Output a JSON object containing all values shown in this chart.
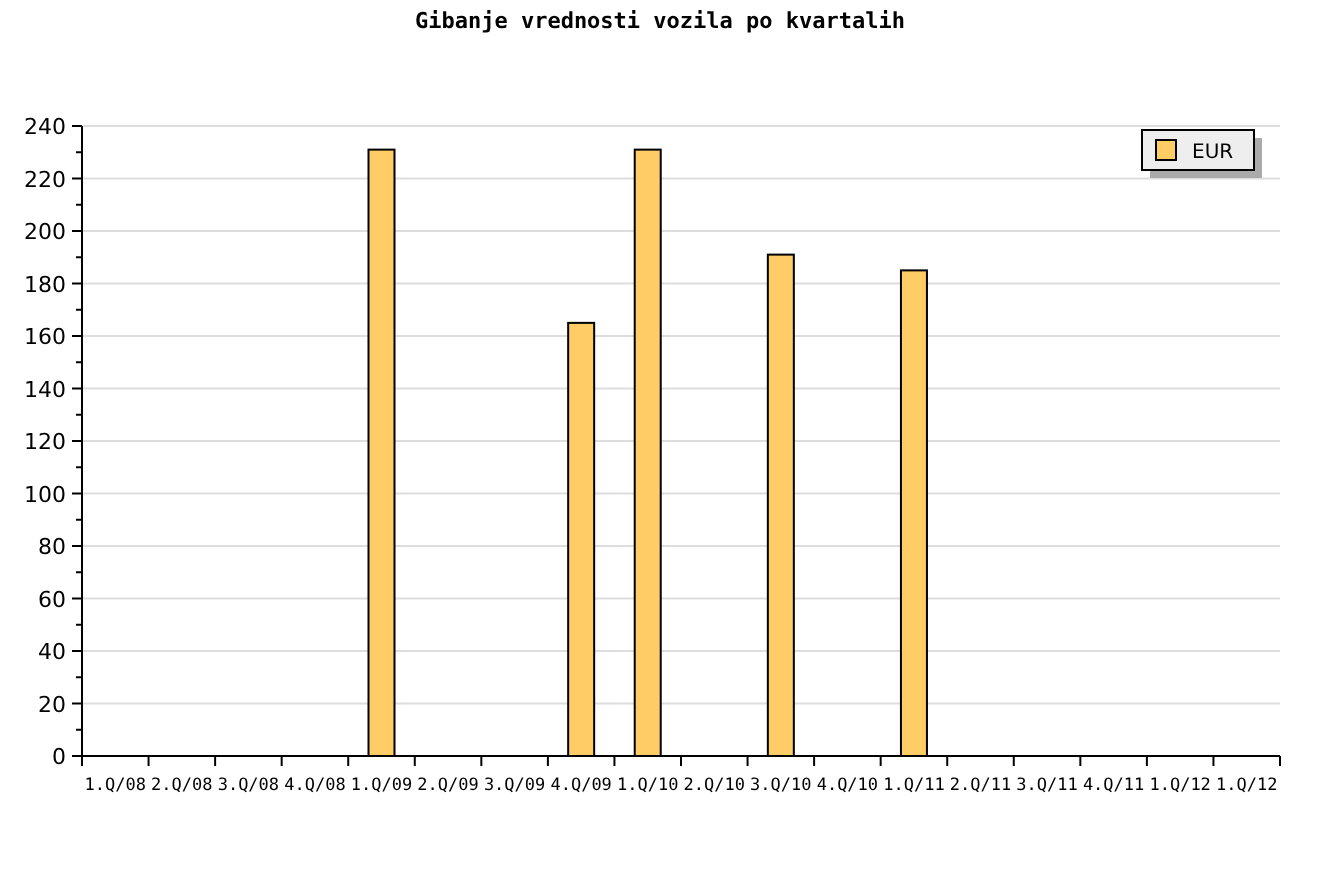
{
  "chart_data": {
    "type": "bar",
    "title": "Gibanje vrednosti vozila po kvartalih",
    "categories": [
      "1.Q/08",
      "2.Q/08",
      "3.Q/08",
      "4.Q/08",
      "1.Q/09",
      "2.Q/09",
      "3.Q/09",
      "4.Q/09",
      "1.Q/10",
      "2.Q/10",
      "3.Q/10",
      "4.Q/10",
      "1.Q/11",
      "2.Q/11",
      "3.Q/11",
      "4.Q/11",
      "1.Q/12",
      "1.Q/12"
    ],
    "series": [
      {
        "name": "EUR",
        "color": "#ffcc66",
        "values": [
          null,
          null,
          null,
          null,
          231,
          null,
          null,
          165,
          231,
          null,
          191,
          null,
          185,
          null,
          null,
          null,
          null,
          null
        ]
      }
    ],
    "ylim": [
      0,
      240
    ],
    "yticks": [
      0,
      {
        "value": 10,
        "label": null
      },
      20,
      {
        "value": 30,
        "label": null
      },
      40,
      {
        "value": 50,
        "label": null
      },
      60,
      {
        "value": 70,
        "label": null
      },
      80,
      {
        "value": 90,
        "label": null
      },
      100,
      {
        "value": 110,
        "label": null
      },
      120,
      {
        "value": 130,
        "label": null
      },
      140,
      {
        "value": 150,
        "label": null
      },
      160,
      {
        "value": 170,
        "label": null
      },
      180,
      {
        "value": 190,
        "label": null
      },
      200,
      {
        "value": 210,
        "label": null
      },
      220,
      {
        "value": 230,
        "label": null
      },
      240
    ],
    "grid": "y",
    "legend": "top right"
  }
}
